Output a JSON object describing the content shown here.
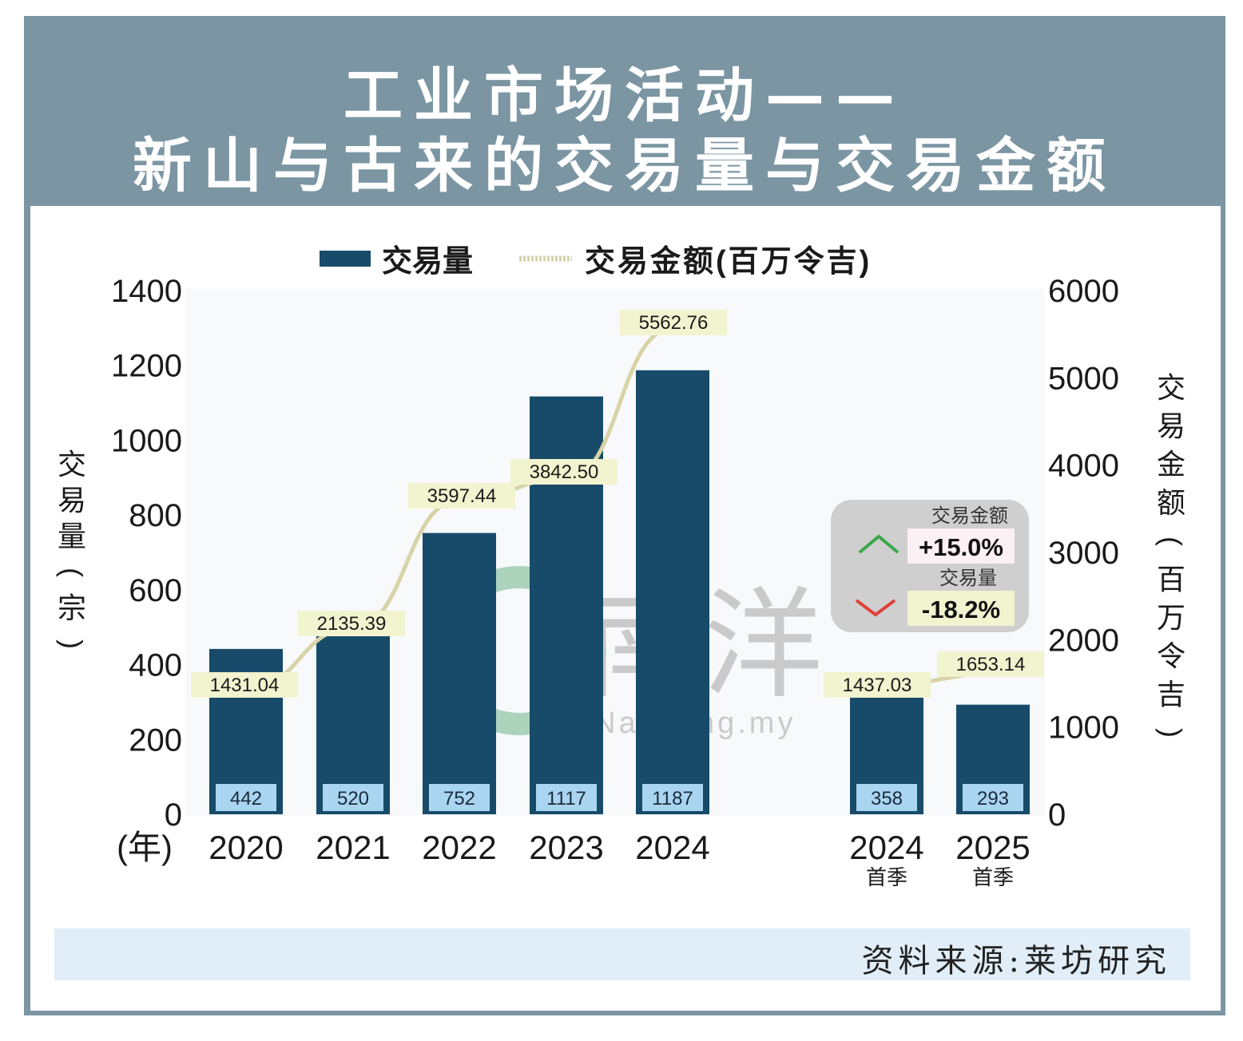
{
  "title_line1": "工业市场活动——",
  "title_line2": "新山与古来的交易量与交易金额",
  "legend": {
    "bar_label": "交易量",
    "line_label": "交易金额(百万令吉)"
  },
  "axes": {
    "left_label": "交易量(宗)",
    "right_label": "交易金额(百万令吉)",
    "x_unit_label": "(年)"
  },
  "change_box": {
    "value_title": "交易金额",
    "value_change": "+15.0%",
    "volume_title": "交易量",
    "volume_change": "-18.2%"
  },
  "watermark": {
    "logo_text": "南洋",
    "url_text": "eNanyang.my"
  },
  "source": "资料来源:莱坊研究",
  "colors": {
    "bar": "#174b69",
    "line": "#d8d3a6",
    "label_bg": "#f2f3cf",
    "bar_label_bg": "#a9d5f1",
    "frame": "#7b95a3",
    "up": "#3aa84a",
    "down": "#e0403a"
  },
  "chart_data": {
    "type": "bar+line",
    "categories": [
      "2020",
      "2021",
      "2022",
      "2023",
      "2024",
      "2024",
      "2025"
    ],
    "category_sub": [
      "",
      "",
      "",
      "",
      "",
      "首季",
      "首季"
    ],
    "series": [
      {
        "name": "交易量",
        "type": "bar",
        "axis": "left",
        "values": [
          442,
          520,
          752,
          1117,
          1187,
          358,
          293
        ]
      },
      {
        "name": "交易金额(百万令吉)",
        "type": "line",
        "axis": "right",
        "values": [
          1431.04,
          2135.39,
          3597.44,
          3842.5,
          5562.76,
          1437.03,
          1653.14
        ],
        "labels": [
          "1431.04",
          "2135.39",
          "3597.44",
          "3842.50",
          "5562.76",
          "1437.03",
          "1653.14"
        ]
      }
    ],
    "left_axis": {
      "ticks": [
        "0",
        "200",
        "400",
        "600",
        "800",
        "1000",
        "1200",
        "1400"
      ],
      "range": [
        0,
        1400
      ]
    },
    "right_axis": {
      "ticks": [
        "0",
        "1000",
        "2000",
        "3000",
        "4000",
        "5000",
        "6000"
      ],
      "range": [
        0,
        6000
      ]
    },
    "legend_position": "top",
    "grid": false
  }
}
